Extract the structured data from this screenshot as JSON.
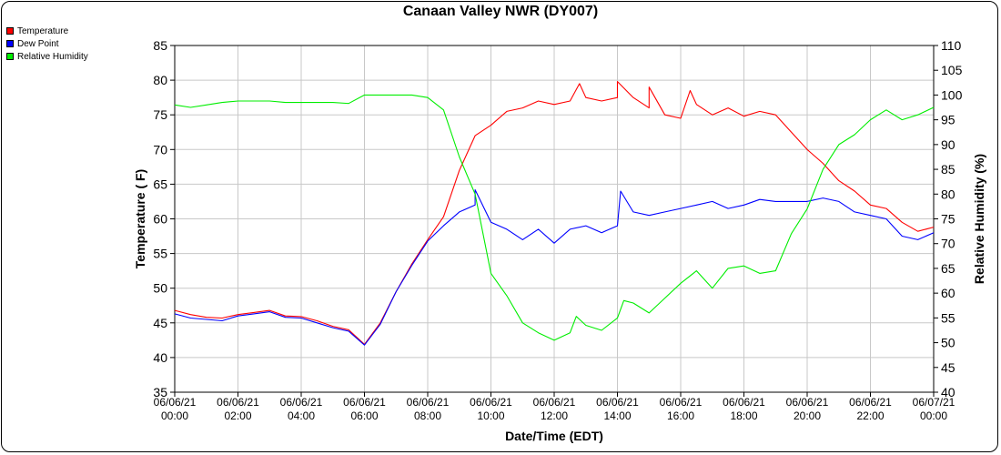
{
  "chart_data": {
    "type": "line",
    "title": "Canaan Valley NWR (DY007)",
    "xlabel": "Date/Time (EDT)",
    "ylabel": "Temperature ( F)",
    "y2label": "Relative Humidity (%)",
    "ylim": [
      35,
      85
    ],
    "y2lim": [
      40,
      110
    ],
    "yticks": [
      35,
      40,
      45,
      50,
      55,
      60,
      65,
      70,
      75,
      80,
      85
    ],
    "y2ticks": [
      40,
      45,
      50,
      55,
      60,
      65,
      70,
      75,
      80,
      85,
      90,
      95,
      100,
      105,
      110
    ],
    "grid": true,
    "legend_position": "top-left",
    "xticks": [
      {
        "date": "06/06/21",
        "time": "00:00",
        "hour": 0
      },
      {
        "date": "06/06/21",
        "time": "02:00",
        "hour": 2
      },
      {
        "date": "06/06/21",
        "time": "04:00",
        "hour": 4
      },
      {
        "date": "06/06/21",
        "time": "06:00",
        "hour": 6
      },
      {
        "date": "06/06/21",
        "time": "08:00",
        "hour": 8
      },
      {
        "date": "06/06/21",
        "time": "10:00",
        "hour": 10
      },
      {
        "date": "06/06/21",
        "time": "12:00",
        "hour": 12
      },
      {
        "date": "06/06/21",
        "time": "14:00",
        "hour": 14
      },
      {
        "date": "06/06/21",
        "time": "16:00",
        "hour": 16
      },
      {
        "date": "06/06/21",
        "time": "18:00",
        "hour": 18
      },
      {
        "date": "06/06/21",
        "time": "20:00",
        "hour": 20
      },
      {
        "date": "06/06/21",
        "time": "22:00",
        "hour": 22
      },
      {
        "date": "06/07/21",
        "time": "00:00",
        "hour": 24
      }
    ],
    "series": [
      {
        "name": "Temperature",
        "color": "#ff0000",
        "axis": "left",
        "x": [
          0,
          0.5,
          1,
          1.5,
          2,
          2.5,
          3,
          3.5,
          4,
          4.5,
          5,
          5.5,
          6,
          6.5,
          7,
          7.5,
          8,
          8.5,
          9,
          9.5,
          10,
          10.5,
          11,
          11.5,
          12,
          12.5,
          13,
          13.5,
          14,
          14.5,
          15,
          15.5,
          16,
          16.5,
          17,
          17.5,
          18,
          18.5,
          19,
          19.5,
          20,
          20.5,
          21,
          21.5,
          22,
          22.5,
          23,
          23.5,
          24
        ],
        "values": [
          46.8,
          46.2,
          45.8,
          45.7,
          46.2,
          46.5,
          46.8,
          46.0,
          45.9,
          45.3,
          44.5,
          44.0,
          41.9,
          45.0,
          49.5,
          53.5,
          57.0,
          60.3,
          67.0,
          72.0,
          73.5,
          75.5,
          76.0,
          77.0,
          76.5,
          77.0,
          77.5,
          77.0,
          77.5,
          77.5,
          76.0,
          75.0,
          74.5,
          76.5,
          75.0,
          76.0,
          74.8,
          75.5,
          75.0,
          72.5,
          70.0,
          68.0,
          65.5,
          64.0,
          62.0,
          61.5,
          59.5,
          58.2,
          58.8
        ],
        "peaks": [
          [
            12.8,
            79.5
          ],
          [
            14.0,
            79.8
          ],
          [
            15.0,
            79.0
          ],
          [
            16.3,
            78.5
          ]
        ]
      },
      {
        "name": "Dew Point",
        "color": "#0000ff",
        "axis": "left",
        "x": [
          0,
          0.5,
          1,
          1.5,
          2,
          2.5,
          3,
          3.5,
          4,
          4.5,
          5,
          5.5,
          6,
          6.5,
          7,
          7.5,
          8,
          8.5,
          9,
          9.5,
          10,
          10.5,
          11,
          11.5,
          12,
          12.5,
          13,
          13.5,
          14,
          14.5,
          15,
          15.5,
          16,
          16.5,
          17,
          17.5,
          18,
          18.5,
          19,
          19.5,
          20,
          20.5,
          21,
          21.5,
          22,
          22.5,
          23,
          23.5,
          24
        ],
        "values": [
          46.3,
          45.7,
          45.5,
          45.3,
          46.0,
          46.3,
          46.6,
          45.8,
          45.7,
          45.0,
          44.3,
          43.8,
          41.8,
          44.8,
          49.5,
          53.3,
          56.8,
          59.0,
          61.0,
          62.0,
          59.5,
          58.5,
          57.0,
          58.5,
          56.5,
          58.5,
          59.0,
          58.0,
          59.0,
          61.0,
          60.5,
          61.0,
          61.5,
          62.0,
          62.5,
          61.5,
          62.0,
          62.8,
          62.5,
          62.5,
          62.5,
          63.0,
          62.5,
          61.0,
          60.5,
          60.0,
          57.5,
          57.0,
          58.0
        ],
        "peaks": [
          [
            9.5,
            64.2
          ],
          [
            14.1,
            64.0
          ]
        ]
      },
      {
        "name": "Relative Humidity",
        "color": "#00ee00",
        "axis": "right",
        "x": [
          0,
          0.5,
          1,
          1.5,
          2,
          2.5,
          3,
          3.5,
          4,
          4.5,
          5,
          5.5,
          6,
          6.5,
          7,
          7.5,
          8,
          8.5,
          9,
          9.5,
          10,
          10.5,
          11,
          11.5,
          12,
          12.5,
          13,
          13.5,
          14,
          14.5,
          15,
          15.5,
          16,
          16.5,
          17,
          17.5,
          18,
          18.5,
          19,
          19.5,
          20,
          20.5,
          21,
          21.5,
          22,
          22.5,
          23,
          23.5,
          24
        ],
        "values": [
          98.0,
          97.5,
          98.0,
          98.5,
          98.8,
          98.8,
          98.8,
          98.5,
          98.5,
          98.5,
          98.5,
          98.3,
          100.0,
          100.0,
          100.0,
          100.0,
          99.5,
          97.0,
          87.5,
          80.0,
          64.0,
          59.5,
          54.0,
          52.0,
          50.5,
          52.0,
          53.5,
          52.5,
          55.0,
          58.0,
          56.0,
          59.0,
          62.0,
          64.5,
          61.0,
          65.0,
          65.5,
          64.0,
          64.5,
          72.0,
          77.0,
          85.0,
          90.0,
          92.0,
          95.0,
          97.0,
          95.0,
          96.0,
          97.5
        ],
        "peaks": [
          [
            12.7,
            55.3
          ],
          [
            14.2,
            58.5
          ]
        ]
      }
    ]
  },
  "legend": {
    "items": [
      {
        "label": "Temperature",
        "color": "#ff0000"
      },
      {
        "label": "Dew Point",
        "color": "#0000ff"
      },
      {
        "label": "Relative Humidity",
        "color": "#00ee00"
      }
    ]
  }
}
